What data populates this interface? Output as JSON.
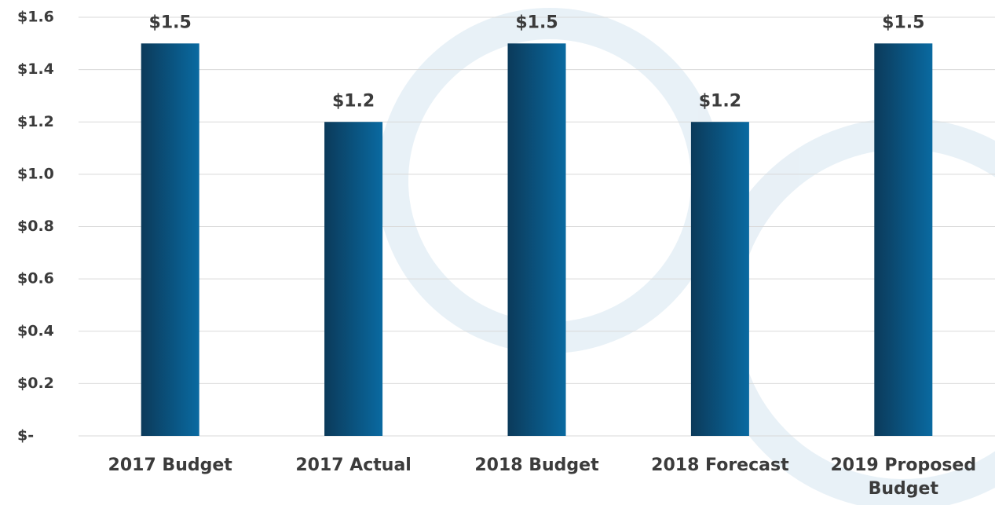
{
  "chart_data": {
    "type": "bar",
    "categories": [
      "2017 Budget",
      "2017 Actual",
      "2018 Budget",
      "2018 Forecast",
      "2019 Proposed Budget"
    ],
    "values": [
      1.5,
      1.2,
      1.5,
      1.2,
      1.5
    ],
    "value_labels": [
      "$1.5",
      "$1.2",
      "$1.5",
      "$1.2",
      "$1.5"
    ],
    "color": "#0a6aa1",
    "ylim": [
      0,
      1.6
    ],
    "yticks": [
      {
        "value": 0,
        "label": "$-"
      },
      {
        "value": 0.2,
        "label": "$0.2"
      },
      {
        "value": 0.4,
        "label": "$0.4"
      },
      {
        "value": 0.6,
        "label": "$0.6"
      },
      {
        "value": 0.8,
        "label": "$0.8"
      },
      {
        "value": 1.0,
        "label": "$1.0"
      },
      {
        "value": 1.2,
        "label": "$1.2"
      },
      {
        "value": 1.4,
        "label": "$1.4"
      },
      {
        "value": 1.6,
        "label": "$1.6"
      }
    ],
    "grid": true
  }
}
